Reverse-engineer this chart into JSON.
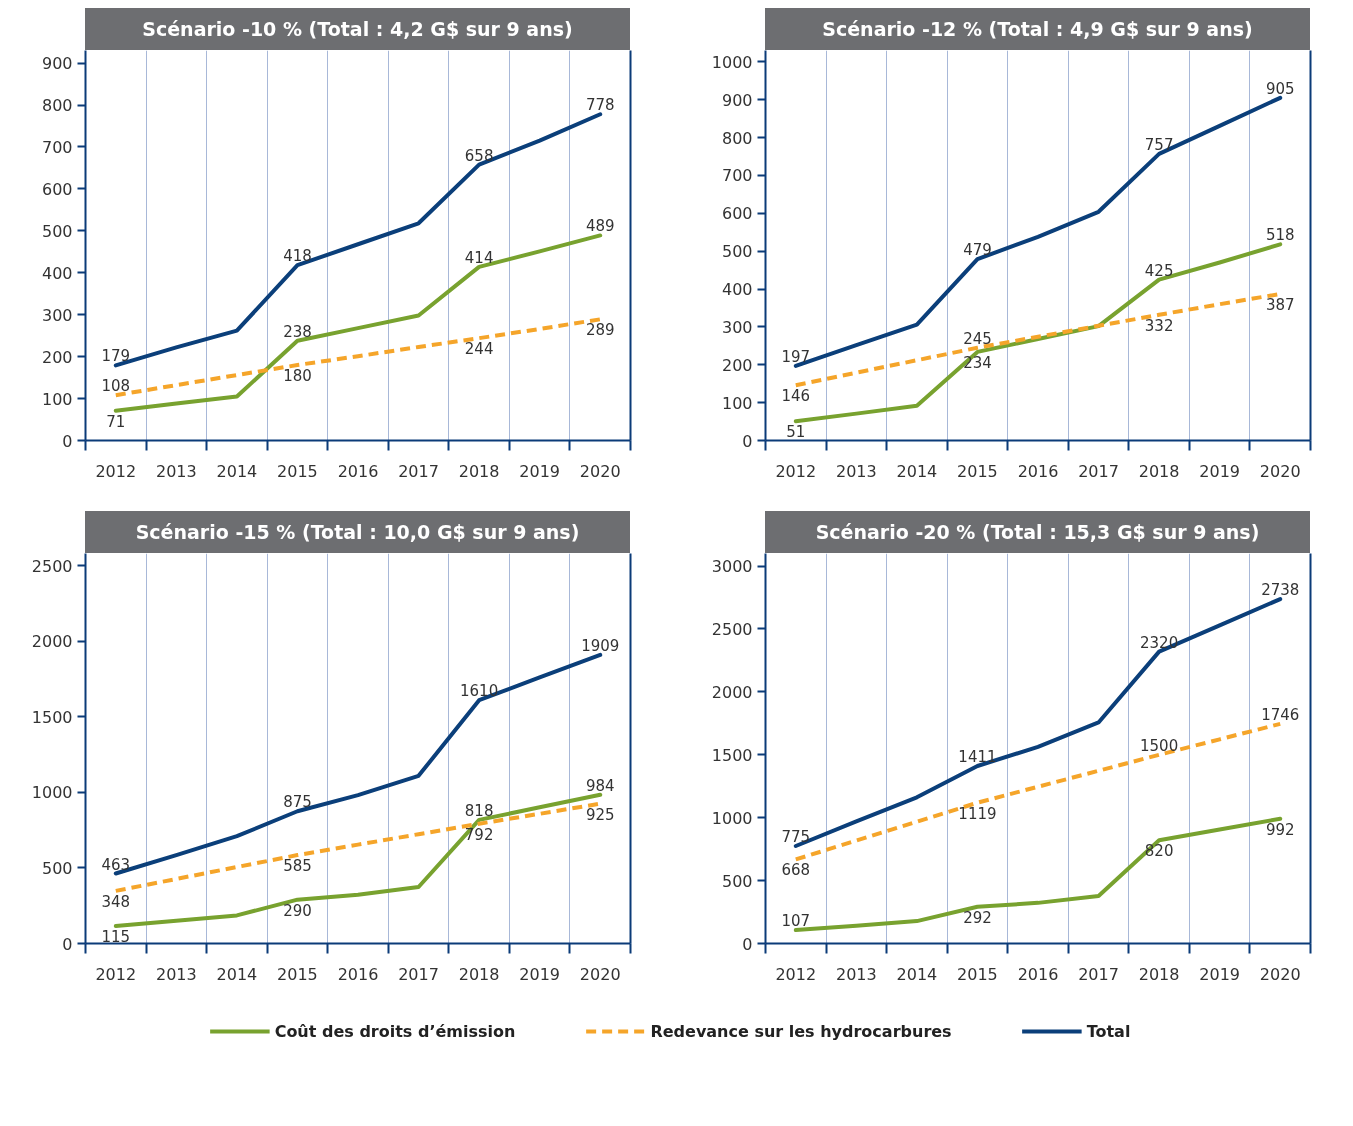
{
  "chart_data": [
    {
      "type": "line",
      "title": "Scénario -10 % (Total : 4,2 G$ sur 9 ans)",
      "categories": [
        "2012",
        "2013",
        "2014",
        "2015",
        "2016",
        "2017",
        "2018",
        "2019",
        "2020"
      ],
      "ylim": [
        0,
        930
      ],
      "yticks": [
        0,
        100,
        200,
        300,
        400,
        500,
        600,
        700,
        800,
        900
      ],
      "grid": "x",
      "legend": "bottom",
      "series": [
        {
          "name": "Coût des droits d’émission",
          "color": "#78a22f",
          "values": [
            71,
            88,
            105,
            238,
            268,
            298,
            414,
            451,
            489
          ],
          "value_labels": [
            "71",
            null,
            null,
            "238",
            null,
            null,
            "414",
            null,
            "489"
          ]
        },
        {
          "name": "Redevance sur les hydrocarbures",
          "color": "#f5a52a",
          "line_style": "dashed",
          "values": [
            108,
            132,
            156,
            180,
            201,
            223,
            244,
            266,
            289
          ],
          "value_labels": [
            "108",
            null,
            null,
            "180",
            null,
            null,
            "244",
            null,
            "289"
          ]
        },
        {
          "name": "Total",
          "color": "#0b3f7a",
          "values": [
            179,
            222,
            262,
            418,
            468,
            518,
            658,
            715,
            778
          ],
          "value_labels": [
            "179",
            null,
            null,
            "418",
            null,
            null,
            "658",
            null,
            "778"
          ]
        }
      ]
    },
    {
      "type": "line",
      "title": "Scénario -12 % (Total : 4,9 G$ sur 9 ans)",
      "categories": [
        "2012",
        "2013",
        "2014",
        "2015",
        "2016",
        "2017",
        "2018",
        "2019",
        "2020"
      ],
      "ylim": [
        0,
        1030
      ],
      "yticks": [
        0,
        100,
        200,
        300,
        400,
        500,
        600,
        700,
        800,
        900,
        1000
      ],
      "grid": "x",
      "series": [
        {
          "color": "#78a22f",
          "values": [
            51,
            71,
            92,
            234,
            268,
            302,
            425,
            470,
            518
          ],
          "value_labels": [
            "51",
            null,
            null,
            "234",
            null,
            null,
            "425",
            null,
            "518"
          ]
        },
        {
          "color": "#f5a52a",
          "line_style": "dashed",
          "values": [
            146,
            179,
            212,
            245,
            274,
            303,
            332,
            360,
            387
          ],
          "value_labels": [
            "146",
            null,
            null,
            "245",
            null,
            null,
            "332",
            null,
            "387"
          ]
        },
        {
          "color": "#0b3f7a",
          "values": [
            197,
            252,
            306,
            479,
            538,
            604,
            757,
            831,
            905
          ],
          "value_labels": [
            "197",
            null,
            null,
            "479",
            null,
            null,
            "757",
            null,
            "905"
          ]
        }
      ]
    },
    {
      "type": "line",
      "title": "Scénario -15 % (Total : 10,0 G$ sur 9 ans)",
      "categories": [
        "2012",
        "2013",
        "2014",
        "2015",
        "2016",
        "2017",
        "2018",
        "2019",
        "2020"
      ],
      "ylim": [
        0,
        2580
      ],
      "yticks": [
        0,
        500,
        1000,
        1500,
        2000,
        2500
      ],
      "grid": "x",
      "series": [
        {
          "color": "#78a22f",
          "values": [
            115,
            150,
            186,
            290,
            323,
            374,
            818,
            901,
            984
          ],
          "value_labels": [
            "115",
            null,
            null,
            "290",
            null,
            null,
            "818",
            null,
            "984"
          ]
        },
        {
          "color": "#f5a52a",
          "line_style": "dashed",
          "values": [
            348,
            427,
            506,
            585,
            654,
            723,
            792,
            858,
            925
          ],
          "value_labels": [
            "348",
            null,
            null,
            "585",
            null,
            null,
            "792",
            null,
            "925"
          ]
        },
        {
          "color": "#0b3f7a",
          "values": [
            463,
            585,
            710,
            875,
            982,
            1109,
            1610,
            1760,
            1909
          ],
          "value_labels": [
            "463",
            null,
            null,
            "875",
            null,
            null,
            "1610",
            null,
            "1909"
          ]
        }
      ]
    },
    {
      "type": "line",
      "title": "Scénario -20 % (Total : 15,3 G$ sur 9 ans)",
      "categories": [
        "2012",
        "2013",
        "2014",
        "2015",
        "2016",
        "2017",
        "2018",
        "2019",
        "2020"
      ],
      "ylim": [
        0,
        3100
      ],
      "yticks": [
        0,
        500,
        1000,
        1500,
        2000,
        2500,
        3000
      ],
      "grid": "x",
      "series": [
        {
          "color": "#78a22f",
          "values": [
            107,
            142,
            178,
            292,
            323,
            378,
            820,
            906,
            992
          ],
          "value_labels": [
            "107",
            null,
            null,
            "292",
            null,
            null,
            "820",
            null,
            "992"
          ]
        },
        {
          "color": "#f5a52a",
          "line_style": "dashed",
          "values": [
            668,
            818,
            968,
            1119,
            1246,
            1373,
            1500,
            1623,
            1746
          ],
          "value_labels": [
            "668",
            null,
            null,
            "1119",
            null,
            null,
            "1500",
            null,
            "1746"
          ]
        },
        {
          "color": "#0b3f7a",
          "values": [
            775,
            970,
            1162,
            1411,
            1563,
            1757,
            2320,
            2529,
            2738
          ],
          "value_labels": [
            "775",
            null,
            null,
            "1411",
            null,
            null,
            "2320",
            null,
            "2738"
          ]
        }
      ]
    }
  ]
}
